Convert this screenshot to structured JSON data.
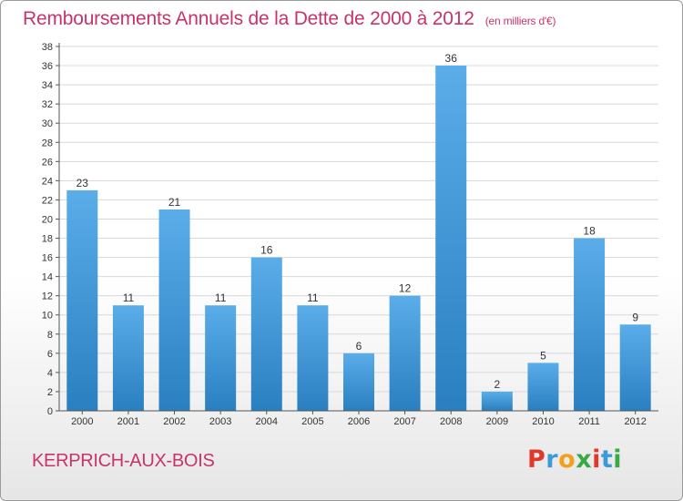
{
  "title": "Remboursements Annuels de la Dette de 2000 à 2012",
  "subtitle": "(en milliers d'€)",
  "commune": "KERPRICH-AUX-BOIS",
  "logo": {
    "text": "Proxiti",
    "colors": [
      "#e2382a",
      "#3d9ad8",
      "#f2a11c",
      "#3aa843",
      "#e2382a",
      "#3d9ad8",
      "#3aa843"
    ]
  },
  "colors": {
    "bar_top": "#5aade9",
    "bar_bottom": "#2a7fc0",
    "title": "#c8336b",
    "grid": "#d8d8d8"
  },
  "chart_data": {
    "type": "bar",
    "categories": [
      "2000",
      "2001",
      "2002",
      "2003",
      "2004",
      "2005",
      "2006",
      "2007",
      "2008",
      "2009",
      "2010",
      "2011",
      "2012"
    ],
    "values": [
      23,
      11,
      21,
      11,
      16,
      11,
      6,
      12,
      36,
      2,
      5,
      18,
      9
    ],
    "ylim": [
      0,
      38
    ],
    "ytick_step": 2,
    "grid": true
  }
}
